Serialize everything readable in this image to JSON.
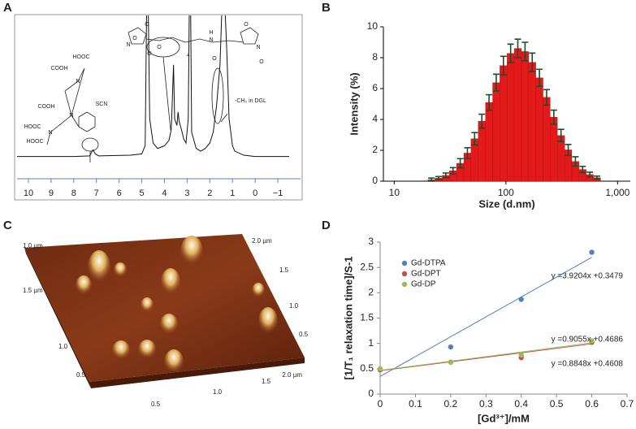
{
  "chart_data": [
    {
      "panel": "A",
      "type": "line",
      "color": "#111111",
      "x": [
        10.5,
        8,
        7.3,
        7.15,
        7.05,
        6.9,
        5.5,
        5.0,
        4.85,
        4.78,
        4.72,
        4.65,
        4.5,
        4.3,
        4.0,
        3.8,
        3.7,
        3.65,
        3.6,
        3.55,
        3.45,
        3.4,
        3.35,
        3.25,
        3.15,
        3.05,
        2.95,
        2.9,
        2.85,
        2.8,
        2.6,
        2.4,
        2.2,
        2.0,
        1.85,
        1.7,
        1.55,
        1.45,
        1.35,
        1.25,
        1.15,
        1.0,
        0.9,
        0.5,
        0,
        -1.5
      ],
      "values": [
        2,
        2,
        2.5,
        7,
        4,
        2.5,
        3,
        4,
        10,
        120,
        120,
        30,
        12,
        8,
        10,
        14,
        22,
        45,
        70,
        30,
        25,
        35,
        28,
        22,
        15,
        12,
        30,
        120,
        120,
        20,
        8,
        6,
        8,
        12,
        20,
        40,
        70,
        120,
        120,
        80,
        30,
        10,
        6,
        3,
        2,
        2
      ],
      "xlim": [
        10.5,
        -1.5
      ],
      "ylim": [
        0,
        100
      ],
      "xticks": [
        10,
        9,
        8,
        7,
        6,
        5,
        4,
        3,
        2,
        1,
        0,
        {
          "value": -1,
          "label": "−1"
        }
      ],
      "structure": [
        "HOOC",
        "COOH",
        "COOH",
        "HOOC",
        "HOOC",
        "N",
        "N",
        "N",
        "SCN",
        "O",
        "O",
        "N",
        "O",
        "O",
        "H",
        "N",
        "O",
        "N",
        "O",
        "O",
        "4"
      ],
      "annotation": "-CH₂ in DGL"
    },
    {
      "panel": "B",
      "type": "histogram",
      "color": "#e31a1c",
      "error_color": "#1e4d2b",
      "bins": [
        20,
        23.2,
        26.9,
        31.2,
        36.2,
        42.0,
        48.7,
        56.5,
        65.6,
        76.1,
        88.2,
        102.4,
        118.7,
        137.7,
        159.8,
        185.3,
        215.0,
        249.4,
        289.3,
        335.6,
        389.3,
        451.6,
        523.8,
        607.6,
        704.8
      ],
      "values": [
        0.1,
        0.2,
        0.38,
        0.68,
        1.16,
        1.82,
        2.75,
        3.89,
        5.1,
        6.38,
        7.49,
        8.28,
        8.6,
        8.4,
        7.7,
        6.7,
        5.43,
        4.15,
        2.96,
        2.03,
        1.28,
        0.76,
        0.43,
        0.23
      ],
      "errors": [
        0.1,
        0.1,
        0.15,
        0.2,
        0.3,
        0.35,
        0.4,
        0.45,
        0.5,
        0.55,
        0.6,
        0.6,
        0.6,
        0.6,
        0.6,
        0.55,
        0.5,
        0.45,
        0.4,
        0.35,
        0.3,
        0.2,
        0.15,
        0.1
      ],
      "xscale": "log",
      "xlim": [
        8,
        1300
      ],
      "ylim": [
        0,
        10
      ],
      "xticks": [
        10,
        100,
        {
          "value": 1000,
          "label": "1,000"
        }
      ],
      "yticks": [
        0,
        2,
        4,
        6,
        8,
        10
      ],
      "xlabel": "Size (d.nm)",
      "ylabel": "Intensity (%)"
    },
    {
      "panel": "C",
      "type": "surface",
      "labels": [
        "2.0 µm",
        "1.5",
        "1.0",
        "0.5",
        "1.0 µm",
        "1.5 µm",
        "1.0",
        "0.5",
        "0.5",
        "1.0",
        "1.5",
        "2.0 µm"
      ]
    },
    {
      "panel": "D",
      "type": "scatter",
      "xlim": [
        0,
        0.7
      ],
      "ylim": [
        0,
        3
      ],
      "xticks": [
        0,
        0.1,
        0.2,
        0.3,
        0.4,
        0.5,
        0.6,
        0.7
      ],
      "yticks": [
        0,
        0.5,
        1,
        1.5,
        2,
        2.5,
        3
      ],
      "xlabel": "[Gd³⁺]/mM",
      "ylabel": "[1/T₁ relaxation time]/S-1",
      "legend": "upper left",
      "series": [
        {
          "name": "Gd-DTPA",
          "color": "#4f81bd",
          "x": [
            0.2,
            0.4,
            0.6
          ],
          "values": [
            0.93,
            1.87,
            2.8
          ],
          "trendline": {
            "slope": 3.9204,
            "intercept": 0.3479,
            "label": "y =3.9204x +0.3479"
          }
        },
        {
          "name": "Gd-DPT",
          "color": "#c0504d",
          "x": [
            0,
            0.2,
            0.4,
            0.6
          ],
          "values": [
            0.48,
            0.63,
            0.72,
            1.02
          ],
          "trendline": {
            "slope": 0.8848,
            "intercept": 0.4608,
            "label": "y =0.8848x +0.4608"
          }
        },
        {
          "name": "Gd-DP",
          "color": "#9bbb59",
          "x": [
            0,
            0.2,
            0.4,
            0.6
          ],
          "values": [
            0.5,
            0.63,
            0.77,
            1.05
          ],
          "trendline": {
            "slope": 0.9055,
            "intercept": 0.4686,
            "label": "y =0.9055x +0.4686"
          }
        }
      ]
    }
  ]
}
